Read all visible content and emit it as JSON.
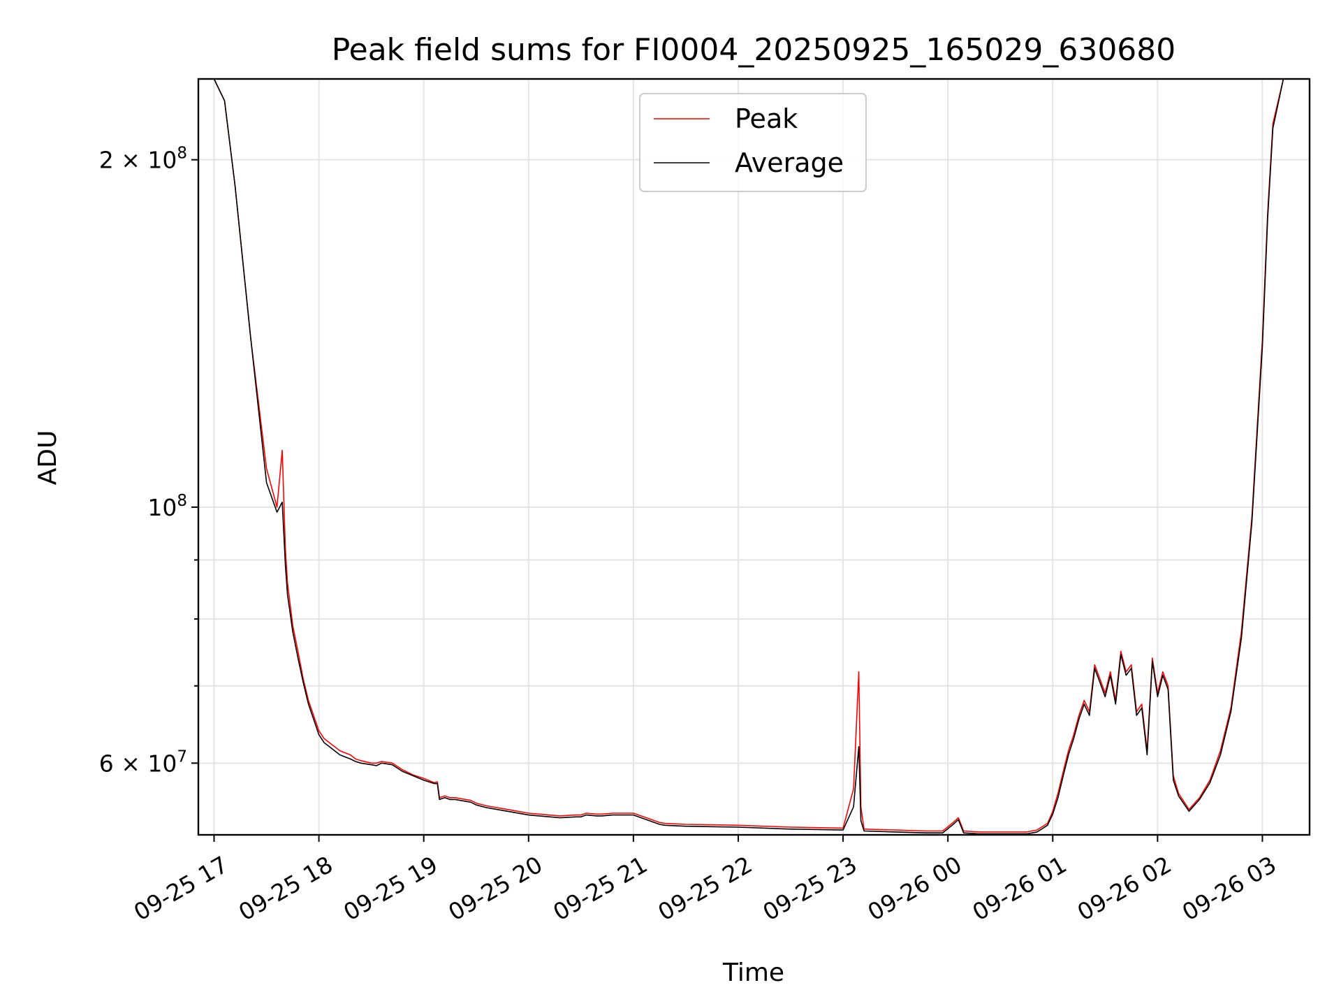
{
  "chart_data": {
    "type": "line",
    "title": "Peak field sums for FI0004_20250925_165029_630680",
    "xlabel": "Time",
    "ylabel": "ADU",
    "yscale": "log",
    "ylim": [
      52000000,
      235000000
    ],
    "xlim": [
      -0.15,
      10.45
    ],
    "x_unit": "hours since 09-25 17:00",
    "grid": true,
    "legend_position": "top-center",
    "x_ticks": [
      {
        "value": 0,
        "label": "09-25 17"
      },
      {
        "value": 1,
        "label": "09-25 18"
      },
      {
        "value": 2,
        "label": "09-25 19"
      },
      {
        "value": 3,
        "label": "09-25 20"
      },
      {
        "value": 4,
        "label": "09-25 21"
      },
      {
        "value": 5,
        "label": "09-25 22"
      },
      {
        "value": 6,
        "label": "09-25 23"
      },
      {
        "value": 7,
        "label": "09-26 00"
      },
      {
        "value": 8,
        "label": "09-26 01"
      },
      {
        "value": 9,
        "label": "09-26 02"
      },
      {
        "value": 10,
        "label": "09-26 03"
      }
    ],
    "y_major_ticks": [
      {
        "value": 60000000,
        "mant": "6",
        "base": "10",
        "exp": "7"
      },
      {
        "value": 100000000,
        "mant": "",
        "base": "10",
        "exp": "8"
      },
      {
        "value": 200000000,
        "mant": "2",
        "base": "10",
        "exp": "8"
      }
    ],
    "y_minor_ticks": [
      70000000,
      80000000,
      90000000
    ],
    "series": [
      {
        "name": "Peak",
        "color": "#ff0000",
        "x": [
          -0.15,
          0.0,
          0.1,
          0.2,
          0.35,
          0.5,
          0.6,
          0.65,
          0.68,
          0.7,
          0.75,
          0.8,
          0.85,
          0.9,
          1.0,
          1.05,
          1.1,
          1.15,
          1.2,
          1.3,
          1.35,
          1.4,
          1.5,
          1.55,
          1.6,
          1.7,
          1.8,
          1.9,
          2.0,
          2.1,
          2.13,
          2.15,
          2.2,
          2.25,
          2.3,
          2.45,
          2.5,
          2.6,
          2.8,
          3.0,
          3.3,
          3.45,
          3.5,
          3.55,
          3.65,
          3.7,
          3.8,
          4.0,
          4.25,
          4.3,
          4.5,
          5.0,
          5.5,
          6.0,
          6.1,
          6.15,
          6.17,
          6.2,
          6.5,
          6.8,
          6.95,
          7.05,
          7.1,
          7.15,
          7.3,
          7.5,
          7.75,
          7.85,
          7.95,
          8.0,
          8.05,
          8.1,
          8.15,
          8.2,
          8.25,
          8.3,
          8.35,
          8.4,
          8.45,
          8.5,
          8.55,
          8.6,
          8.65,
          8.7,
          8.75,
          8.8,
          8.85,
          8.9,
          8.95,
          9.0,
          9.05,
          9.1,
          9.15,
          9.2,
          9.3,
          9.4,
          9.5,
          9.6,
          9.7,
          9.8,
          9.9,
          10.0,
          10.05,
          10.1,
          10.2,
          10.45
        ],
        "y": [
          235000000,
          235000000,
          225000000,
          190000000,
          140000000,
          108000000,
          100000000,
          112000000,
          92000000,
          86000000,
          79000000,
          75000000,
          71000000,
          68000000,
          64000000,
          63000000,
          62500000,
          62000000,
          61500000,
          61000000,
          60500000,
          60300000,
          60000000,
          60000000,
          60200000,
          60000000,
          59200000,
          58600000,
          58200000,
          57700000,
          57800000,
          56000000,
          56200000,
          56000000,
          56000000,
          55700000,
          55400000,
          55100000,
          54700000,
          54300000,
          54000000,
          54100000,
          54100000,
          54300000,
          54200000,
          54200000,
          54300000,
          54300000,
          53300000,
          53200000,
          53100000,
          53000000,
          52800000,
          52700000,
          57000000,
          72000000,
          55000000,
          52600000,
          52500000,
          52400000,
          52400000,
          53300000,
          53800000,
          52400000,
          52300000,
          52300000,
          52300000,
          52500000,
          53200000,
          54500000,
          56500000,
          59000000,
          61500000,
          63500000,
          66000000,
          68000000,
          66500000,
          73000000,
          71000000,
          69000000,
          72000000,
          68000000,
          75000000,
          72000000,
          73000000,
          66500000,
          67500000,
          61500000,
          74000000,
          69000000,
          72000000,
          70000000,
          58500000,
          56500000,
          54700000,
          56000000,
          58000000,
          61500000,
          67000000,
          78000000,
          98000000,
          140000000,
          180000000,
          215000000,
          235000000,
          235000000
        ]
      },
      {
        "name": "Average",
        "color": "#000000",
        "x": [
          -0.15,
          0.0,
          0.1,
          0.2,
          0.35,
          0.5,
          0.6,
          0.65,
          0.68,
          0.7,
          0.75,
          0.8,
          0.85,
          0.9,
          1.0,
          1.05,
          1.1,
          1.15,
          1.2,
          1.3,
          1.35,
          1.4,
          1.5,
          1.55,
          1.6,
          1.7,
          1.8,
          1.9,
          2.0,
          2.1,
          2.13,
          2.15,
          2.2,
          2.25,
          2.3,
          2.45,
          2.5,
          2.6,
          2.8,
          3.0,
          3.3,
          3.45,
          3.5,
          3.55,
          3.65,
          3.7,
          3.8,
          4.0,
          4.25,
          4.3,
          4.5,
          5.0,
          5.5,
          6.0,
          6.1,
          6.15,
          6.17,
          6.2,
          6.5,
          6.8,
          6.95,
          7.05,
          7.1,
          7.15,
          7.3,
          7.5,
          7.75,
          7.85,
          7.95,
          8.0,
          8.05,
          8.1,
          8.15,
          8.2,
          8.25,
          8.3,
          8.35,
          8.4,
          8.45,
          8.5,
          8.55,
          8.6,
          8.65,
          8.7,
          8.75,
          8.8,
          8.85,
          8.9,
          8.95,
          9.0,
          9.05,
          9.1,
          9.15,
          9.2,
          9.3,
          9.4,
          9.5,
          9.6,
          9.7,
          9.8,
          9.9,
          10.0,
          10.05,
          10.1,
          10.2,
          10.45
        ],
        "y": [
          235000000,
          235000000,
          225000000,
          190000000,
          140000000,
          105000000,
          99000000,
          101000000,
          89000000,
          84000000,
          78000000,
          74000000,
          70500000,
          67500000,
          63500000,
          62500000,
          62000000,
          61500000,
          61000000,
          60500000,
          60200000,
          60000000,
          59800000,
          59700000,
          60000000,
          59800000,
          59000000,
          58500000,
          58000000,
          57600000,
          57600000,
          55800000,
          56000000,
          55800000,
          55800000,
          55500000,
          55200000,
          54900000,
          54500000,
          54100000,
          53800000,
          53900000,
          53900000,
          54100000,
          54000000,
          54000000,
          54100000,
          54100000,
          53100000,
          53000000,
          52900000,
          52800000,
          52600000,
          52500000,
          55000000,
          62000000,
          53500000,
          52400000,
          52300000,
          52200000,
          52200000,
          53100000,
          53600000,
          52200000,
          52100000,
          52100000,
          52100000,
          52300000,
          53000000,
          54200000,
          56000000,
          58500000,
          61000000,
          63000000,
          65500000,
          67500000,
          66000000,
          72500000,
          70500000,
          68500000,
          71500000,
          67500000,
          74500000,
          71500000,
          72500000,
          66000000,
          67000000,
          61000000,
          73500000,
          68500000,
          71500000,
          69500000,
          58000000,
          56200000,
          54500000,
          55800000,
          57700000,
          61000000,
          66500000,
          77000000,
          97000000,
          138000000,
          178000000,
          213000000,
          235000000,
          235000000
        ]
      }
    ]
  }
}
